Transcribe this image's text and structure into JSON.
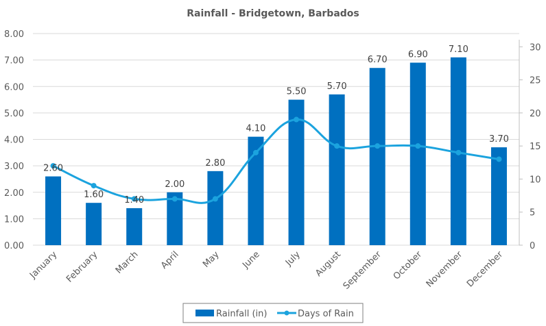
{
  "chart_data": {
    "type": "bar",
    "title": "Rainfall - Bridgetown, Barbados",
    "categories": [
      "January",
      "February",
      "March",
      "April",
      "May",
      "June",
      "July",
      "August",
      "September",
      "October",
      "November",
      "December"
    ],
    "series": [
      {
        "name": "Rainfall (in)",
        "type": "bar",
        "axis": "left",
        "color": "#0070C0",
        "values": [
          2.6,
          1.6,
          1.4,
          2.0,
          2.8,
          4.1,
          5.5,
          5.7,
          6.7,
          6.9,
          7.1,
          3.7
        ],
        "labels": [
          "2.60",
          "1.60",
          "1.40",
          "2.00",
          "2.80",
          "4.10",
          "5.50",
          "5.70",
          "6.70",
          "6.90",
          "7.10",
          "3.70"
        ]
      },
      {
        "name": "Days of Rain",
        "type": "line",
        "axis": "right",
        "color": "#1BA3DE",
        "smooth": true,
        "values": [
          12,
          9,
          7,
          7,
          7,
          14,
          19,
          15,
          15,
          15,
          14,
          13
        ]
      }
    ],
    "y_left": {
      "min": 0,
      "max": 8,
      "ticks": [
        "0.00",
        "1.00",
        "2.00",
        "3.00",
        "4.00",
        "5.00",
        "6.00",
        "7.00",
        "8.00"
      ]
    },
    "y_right": {
      "min": 0,
      "max": 32,
      "ticks": [
        "0",
        "5",
        "10",
        "15",
        "20",
        "25",
        "30"
      ]
    },
    "xlabel": "",
    "ylabel": "",
    "grid": true,
    "legend": {
      "position": "bottom",
      "items": [
        "Rainfall (in)",
        "Days of Rain"
      ]
    }
  }
}
